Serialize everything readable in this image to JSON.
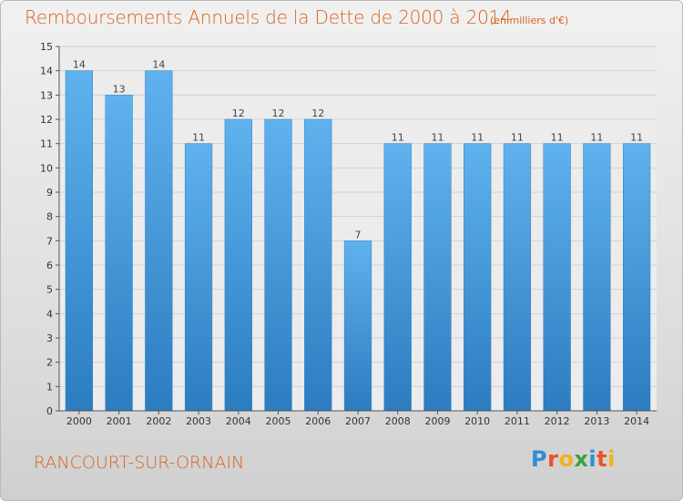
{
  "header": {
    "title": "Remboursements Annuels de la Dette de 2000 à 2014",
    "units": "(en milliers d'€)"
  },
  "footer": {
    "commune": "RANCOURT-SUR-ORNAIN",
    "logo": "Proxiti",
    "logo_colors": [
      "#2f8fd6",
      "#e8512a",
      "#f2b21c",
      "#3aa142",
      "#2f8fd6",
      "#e8512a",
      "#f2b21c"
    ]
  },
  "chart_data": {
    "type": "bar",
    "title": "Remboursements Annuels de la Dette de 2000 à 2014",
    "ylabel": "",
    "xlabel": "",
    "categories": [
      "2000",
      "2001",
      "2002",
      "2003",
      "2004",
      "2005",
      "2006",
      "2007",
      "2008",
      "2009",
      "2010",
      "2011",
      "2012",
      "2013",
      "2014"
    ],
    "values": [
      14,
      13,
      14,
      11,
      12,
      12,
      12,
      7,
      11,
      11,
      11,
      11,
      11,
      11,
      11
    ],
    "ylim": [
      0,
      15
    ],
    "yticks": [
      "0",
      "1",
      "2",
      "3",
      "4",
      "5",
      "6",
      "7",
      "8",
      "9",
      "10",
      "11",
      "12",
      "13",
      "14",
      "15"
    ],
    "grid": true,
    "bar_color": "#4a9fe0"
  }
}
